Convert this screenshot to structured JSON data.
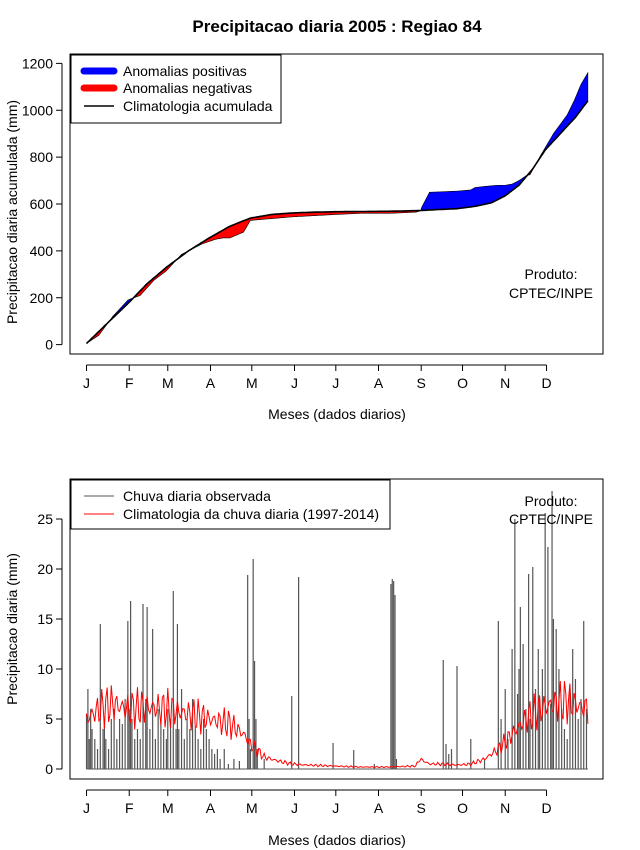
{
  "chart_data": [
    {
      "type": "area",
      "title": "Precipitacao diaria 2005 : Regiao 84",
      "xlabel": "Meses (dados diarios)",
      "ylabel": "Precipitacao diaria acumulada (mm)",
      "x_tick_labels": [
        "J",
        "F",
        "M",
        "A",
        "M",
        "J",
        "J",
        "A",
        "S",
        "O",
        "N",
        "D"
      ],
      "y_ticks": [
        0,
        200,
        400,
        600,
        800,
        1000,
        1200
      ],
      "ylim": [
        -40,
        1240
      ],
      "xlim_day": [
        -11,
        376
      ],
      "legend": [
        {
          "label": "Anomalias positivas",
          "color": "#0000ff"
        },
        {
          "label": "Anomalias negativas",
          "color": "#ff0000"
        },
        {
          "label": "Climatologia acumulada",
          "color": "#000000"
        }
      ],
      "legend_position": "top-left",
      "annotation": [
        "Produto:",
        "CPTEC/INPE"
      ],
      "series": [
        {
          "name": "Climatologia acumulada",
          "day": [
            1,
            15,
            31,
            45,
            59,
            75,
            90,
            105,
            120,
            135,
            151,
            165,
            181,
            200,
            220,
            243,
            255,
            270,
            283,
            295,
            305,
            315,
            325,
            334,
            345,
            356,
            365
          ],
          "values": [
            5,
            85,
            175,
            260,
            330,
            400,
            455,
            505,
            540,
            555,
            562,
            565,
            567,
            568,
            569,
            572,
            576,
            580,
            590,
            605,
            635,
            680,
            750,
            830,
            900,
            970,
            1040
          ]
        },
        {
          "name": "Precipitacao acumulada observada",
          "day": [
            1,
            10,
            20,
            31,
            33,
            40,
            50,
            59,
            70,
            85,
            95,
            100,
            105,
            115,
            120,
            130,
            150,
            181,
            200,
            220,
            240,
            243,
            250,
            270,
            280,
            283,
            290,
            300,
            305,
            310,
            315,
            320,
            323,
            330,
            335,
            340,
            345,
            350,
            355,
            360,
            365
          ],
          "values": [
            5,
            40,
            120,
            190,
            195,
            210,
            275,
            315,
            385,
            430,
            450,
            455,
            455,
            480,
            530,
            535,
            545,
            555,
            560,
            560,
            565,
            570,
            650,
            655,
            660,
            670,
            675,
            680,
            680,
            685,
            700,
            720,
            725,
            800,
            850,
            900,
            940,
            980,
            1040,
            1110,
            1160
          ]
        }
      ]
    },
    {
      "type": "bar",
      "xlabel": "Meses (dados diarios)",
      "ylabel": "Precipitacao diaria (mm)",
      "x_tick_labels": [
        "J",
        "F",
        "M",
        "A",
        "M",
        "J",
        "J",
        "A",
        "S",
        "O",
        "N",
        "D"
      ],
      "y_ticks": [
        0,
        5,
        10,
        15,
        20,
        25
      ],
      "ylim": [
        -1,
        29
      ],
      "xlim_day": [
        -11,
        376
      ],
      "legend": [
        {
          "label": "Chuva diaria observada",
          "color": "#555555"
        },
        {
          "label": "Climatologia da chuva diaria (1997-2014)",
          "color": "#ff0000"
        }
      ],
      "legend_position": "top-left",
      "annotation": [
        "Produto:",
        "CPTEC/INPE"
      ],
      "series": [
        {
          "name": "Chuva diaria observada",
          "day": [
            1,
            2,
            3,
            4,
            5,
            7,
            9,
            11,
            13,
            14,
            15,
            17,
            19,
            21,
            23,
            25,
            27,
            29,
            31,
            32,
            33,
            34,
            36,
            38,
            40,
            42,
            44,
            45,
            47,
            49,
            51,
            53,
            55,
            57,
            59,
            60,
            62,
            64,
            66,
            67,
            68,
            70,
            72,
            74,
            76,
            78,
            80,
            82,
            84,
            86,
            88,
            90,
            92,
            94,
            96,
            98,
            101,
            104,
            108,
            112,
            118,
            119,
            120,
            122,
            123,
            124,
            125,
            130,
            150,
            155,
            180,
            195,
            210,
            222,
            223,
            224,
            225,
            226,
            260,
            262,
            264,
            266,
            270,
            280,
            290,
            300,
            302,
            305,
            307,
            310,
            312,
            314,
            315,
            316,
            318,
            320,
            322,
            323,
            325,
            327,
            329,
            330,
            332,
            334,
            336,
            338,
            339,
            340,
            342,
            344,
            346,
            348,
            350,
            352,
            354,
            356,
            358,
            360,
            362,
            364
          ],
          "values": [
            5.5,
            8.0,
            3.0,
            6.0,
            4.0,
            3.0,
            2.0,
            14.5,
            4.0,
            5.0,
            3.0,
            2.0,
            5.0,
            6.0,
            3.0,
            5.0,
            4.5,
            7.0,
            14.8,
            6.0,
            16.8,
            5.0,
            3.0,
            4.0,
            3.0,
            16.5,
            7.0,
            16.2,
            4.0,
            14.0,
            3.0,
            6.0,
            5.0,
            4.0,
            3.0,
            6.0,
            5.0,
            17.8,
            4.0,
            14.5,
            4.0,
            8.0,
            3.0,
            5.0,
            4.0,
            7.0,
            4.0,
            3.0,
            2.0,
            5.0,
            4.0,
            3.0,
            2.0,
            1.5,
            2.0,
            1.0,
            2.0,
            0.5,
            1.0,
            0.8,
            19.4,
            5.0,
            2.0,
            21.0,
            10.8,
            5.0,
            2.0,
            1.0,
            7.3,
            19.2,
            2.6,
            1.9,
            0.5,
            18.5,
            19.0,
            18.8,
            17.4,
            1.0,
            10.9,
            2.5,
            1.5,
            2.0,
            10.3,
            3.0,
            1.0,
            14.8,
            5.0,
            8.0,
            3.0,
            12.0,
            25.0,
            7.5,
            10.0,
            16.2,
            12.5,
            6.0,
            19.5,
            5.0,
            20.2,
            8.0,
            12.0,
            7.0,
            10.0,
            25.6,
            22.2,
            6.5,
            27.8,
            15.0,
            14.0,
            10.0,
            6.0,
            4.0,
            3.0,
            8.0,
            12.0,
            9.0,
            5.0,
            7.0,
            14.8,
            6.0
          ]
        },
        {
          "name": "Climatologia da chuva diaria (1997-2014)",
          "day": [
            1,
            10,
            20,
            31,
            45,
            59,
            75,
            90,
            105,
            115,
            120,
            130,
            140,
            150,
            160,
            180,
            200,
            220,
            240,
            243,
            250,
            260,
            270,
            280,
            290,
            300,
            310,
            320,
            330,
            340,
            350,
            355,
            360,
            365
          ],
          "values": [
            5.0,
            6.0,
            6.5,
            6.0,
            6.2,
            6.0,
            5.5,
            5.0,
            4.5,
            3.5,
            2.5,
            1.2,
            0.8,
            0.5,
            0.4,
            0.3,
            0.2,
            0.2,
            0.3,
            1.0,
            0.5,
            0.5,
            0.4,
            0.5,
            1.0,
            2.0,
            3.5,
            5.0,
            6.0,
            6.5,
            6.8,
            6.5,
            6.2,
            6.0
          ]
        }
      ]
    }
  ]
}
